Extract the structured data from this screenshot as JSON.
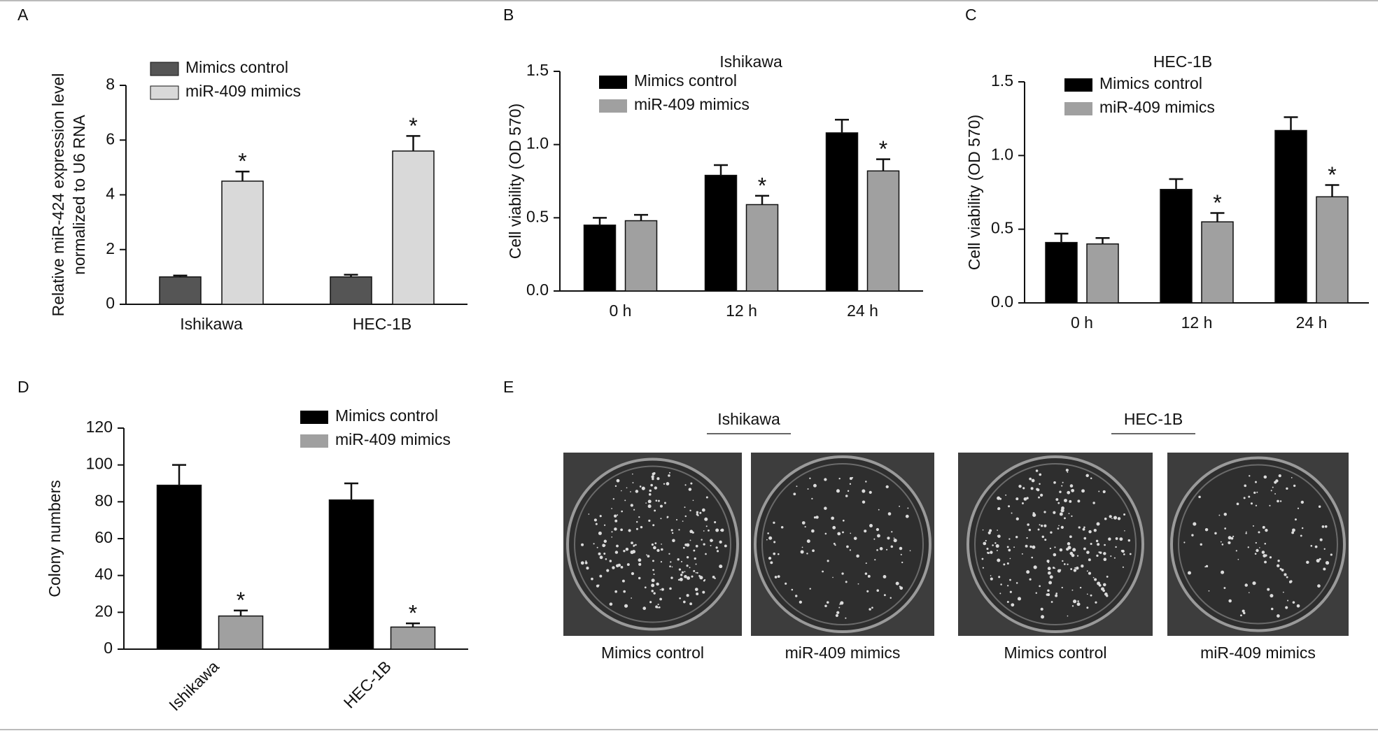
{
  "chart_data": [
    {
      "type": "bar",
      "panel": "A",
      "ylabel": [
        "Relative miR-424 expression level",
        "normalized to U6 RNA"
      ],
      "categories": [
        "Ishikawa",
        "HEC-1B"
      ],
      "series": [
        {
          "name": "Mimics control",
          "color": "#555555",
          "values": [
            1.0,
            1.0
          ],
          "errors": [
            0.05,
            0.08
          ]
        },
        {
          "name": "miR-409 mimics",
          "color": "#d9d9d9",
          "values": [
            4.5,
            5.6
          ],
          "errors": [
            0.35,
            0.55
          ],
          "marks": [
            "*",
            "*"
          ]
        }
      ],
      "ylim": [
        0,
        8
      ],
      "yticks": [
        0,
        2,
        4,
        6,
        8
      ]
    },
    {
      "type": "bar",
      "panel": "B",
      "title": "Ishikawa",
      "ylabel": "Cell viability (OD 570)",
      "categories": [
        "0 h",
        "12 h",
        "24 h"
      ],
      "series": [
        {
          "name": "Mimics control",
          "color": "#000000",
          "values": [
            0.45,
            0.79,
            1.08
          ],
          "errors": [
            0.05,
            0.07,
            0.09
          ]
        },
        {
          "name": "miR-409 mimics",
          "color": "#a0a0a0",
          "values": [
            0.48,
            0.59,
            0.82
          ],
          "errors": [
            0.04,
            0.06,
            0.08
          ],
          "marks": [
            null,
            "*",
            "*"
          ]
        }
      ],
      "ylim": [
        0,
        1.5
      ],
      "yticks": [
        {
          "value": 0,
          "label": "0.0"
        },
        0.5,
        {
          "value": 1,
          "label": "1.0"
        },
        1.5
      ]
    },
    {
      "type": "bar",
      "panel": "C",
      "title": "HEC-1B",
      "ylabel": "Cell viability (OD 570)",
      "categories": [
        "0 h",
        "12 h",
        "24 h"
      ],
      "series": [
        {
          "name": "Mimics control",
          "color": "#000000",
          "values": [
            0.41,
            0.77,
            1.17
          ],
          "errors": [
            0.06,
            0.07,
            0.09
          ]
        },
        {
          "name": "miR-409 mimics",
          "color": "#a0a0a0",
          "values": [
            0.4,
            0.55,
            0.72
          ],
          "errors": [
            0.04,
            0.06,
            0.08
          ],
          "marks": [
            null,
            "*",
            "*"
          ]
        }
      ],
      "ylim": [
        0,
        1.5
      ],
      "yticks": [
        {
          "value": 0,
          "label": "0.0"
        },
        0.5,
        {
          "value": 1,
          "label": "1.0"
        },
        1.5
      ]
    },
    {
      "type": "bar",
      "panel": "D",
      "ylabel": "Colony numbers",
      "categories": [
        "Ishikawa",
        "HEC-1B"
      ],
      "series": [
        {
          "name": "Mimics control",
          "color": "#000000",
          "values": [
            89,
            81
          ],
          "errors": [
            11,
            9
          ]
        },
        {
          "name": "miR-409 mimics",
          "color": "#a0a0a0",
          "values": [
            18,
            12
          ],
          "errors": [
            3,
            2
          ],
          "marks": [
            "*",
            "*"
          ]
        }
      ],
      "ylim": [
        0,
        120
      ],
      "yticks": [
        0,
        20,
        40,
        60,
        80,
        100,
        120
      ]
    },
    {
      "type": "image",
      "panel": "E",
      "groups": [
        {
          "title": "Ishikawa",
          "labels": [
            "Mimics control",
            "miR-409 mimics"
          ]
        },
        {
          "title": "HEC-1B",
          "labels": [
            "Mimics control",
            "miR-409 mimics"
          ]
        }
      ]
    }
  ]
}
